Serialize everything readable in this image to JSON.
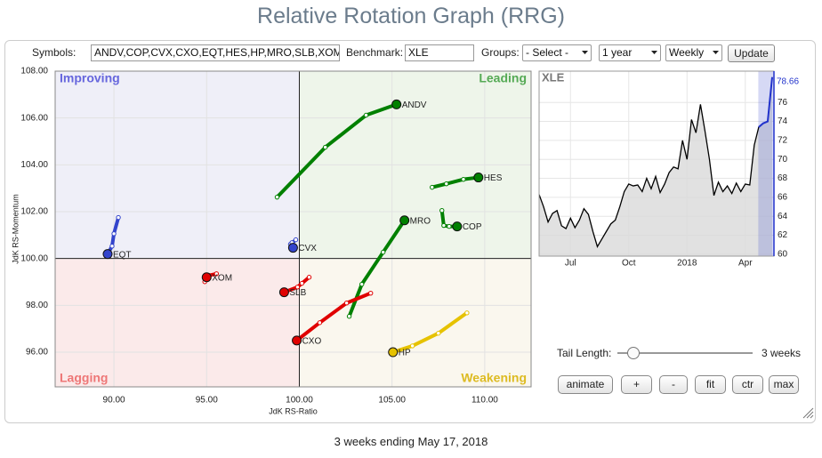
{
  "header": {
    "title": "Relative Rotation Graph (RRG)"
  },
  "controls": {
    "symbols_label": "Symbols:",
    "symbols": "ANDV,COP,CVX,CXO,EQT,HES,HP,MRO,SLB,XOM",
    "benchmark_label": "Benchmark:",
    "benchmark": "XLE",
    "groups_label": "Groups:",
    "groups": "- Select -",
    "period": "1 year",
    "frequency": "Weekly",
    "update": "Update",
    "tail_label": "Tail Length:",
    "tail_value": "3 weeks",
    "buttons": [
      "animate",
      "+",
      "-",
      "fit",
      "ctr",
      "max"
    ]
  },
  "chart_data": [
    {
      "type": "rrg",
      "xlabel": "JdK RS-Ratio",
      "ylabel": "JdK RS-Momentum",
      "quadrants": [
        "Improving",
        "Leading",
        "Lagging",
        "Weakening"
      ],
      "center": {
        "x": 100,
        "y": 100
      },
      "xlim": [
        86.83,
        112.5
      ],
      "ylim": [
        94.52,
        108
      ],
      "xticks": [
        {
          "value": 90,
          "label": "90.00"
        },
        {
          "value": 95,
          "label": "95.00"
        },
        {
          "value": 100,
          "label": "100.00"
        },
        {
          "value": 105,
          "label": "105.00"
        },
        {
          "value": 110,
          "label": "110.00"
        }
      ],
      "yticks": [
        {
          "value": 96,
          "label": "96.00"
        },
        {
          "value": 98,
          "label": "98.00"
        },
        {
          "value": 100,
          "label": "100.00"
        },
        {
          "value": 102,
          "label": "102.00"
        },
        {
          "value": 104,
          "label": "104.00"
        },
        {
          "value": 106,
          "label": "106.00"
        },
        {
          "value": 108,
          "label": "108.00"
        }
      ],
      "grid": true,
      "series": [
        {
          "name": "ANDV",
          "color": "#008000",
          "x": [
            98.8,
            101.4,
            103.6,
            105.24
          ],
          "y": [
            102.62,
            104.75,
            106.12,
            106.58
          ]
        },
        {
          "name": "HES",
          "color": "#008000",
          "x": [
            107.16,
            107.93,
            108.85,
            109.66
          ],
          "y": [
            103.04,
            103.19,
            103.38,
            103.46
          ]
        },
        {
          "name": "COP",
          "color": "#008000",
          "x": [
            107.69,
            107.79,
            108.08,
            108.51
          ],
          "y": [
            102.05,
            101.41,
            101.37,
            101.37
          ]
        },
        {
          "name": "MRO",
          "color": "#008000",
          "x": [
            102.69,
            103.37,
            104.52,
            105.67
          ],
          "y": [
            97.53,
            98.9,
            100.27,
            101.63
          ]
        },
        {
          "name": "CVX",
          "color": "#3344cc",
          "x": [
            99.81,
            99.52,
            99.6,
            99.66
          ],
          "y": [
            100.8,
            100.61,
            100.68,
            100.46
          ]
        },
        {
          "name": "EQT",
          "color": "#3344cc",
          "x": [
            90.24,
            90.0,
            89.9,
            89.66
          ],
          "y": [
            101.75,
            101.06,
            100.53,
            100.19
          ]
        },
        {
          "name": "XOM",
          "color": "#e00000",
          "x": [
            95.53,
            95.14,
            94.9,
            95.0
          ],
          "y": [
            99.35,
            99.28,
            99.01,
            99.2
          ]
        },
        {
          "name": "SLB",
          "color": "#e00000",
          "x": [
            100.53,
            100.14,
            99.9,
            99.18
          ],
          "y": [
            99.2,
            98.94,
            98.78,
            98.56
          ]
        },
        {
          "name": "CXO",
          "color": "#e00000",
          "x": [
            103.85,
            102.55,
            101.1,
            99.86
          ],
          "y": [
            98.52,
            98.1,
            97.26,
            96.5
          ]
        },
        {
          "name": "HP",
          "color": "#e6c200",
          "x": [
            109.04,
            107.5,
            106.1,
            105.05
          ],
          "y": [
            97.68,
            96.81,
            96.27,
            96.0
          ]
        }
      ]
    },
    {
      "type": "line",
      "title": "XLE",
      "color": "#000000",
      "highlight_color": "#2233cc",
      "ylim": [
        59.8,
        79.3
      ],
      "yticks": [
        60,
        62,
        64,
        66,
        68,
        70,
        72,
        74,
        76
      ],
      "grid": true,
      "categories": [
        null,
        null,
        null,
        null,
        null,
        null,
        null,
        "Jul",
        null,
        null,
        null,
        null,
        null,
        null,
        null,
        null,
        null,
        null,
        null,
        null,
        "Oct",
        null,
        null,
        null,
        null,
        null,
        null,
        null,
        null,
        null,
        null,
        null,
        null,
        "2018",
        null,
        null,
        null,
        null,
        null,
        null,
        null,
        null,
        null,
        null,
        null,
        null,
        "Apr",
        null,
        null,
        null,
        null,
        null,
        null
      ],
      "values": [
        66.3,
        65.0,
        63.4,
        64.3,
        64.6,
        63.0,
        62.7,
        63.8,
        62.8,
        63.6,
        64.8,
        64.2,
        62.4,
        60.8,
        61.6,
        62.4,
        63.2,
        63.6,
        65.0,
        66.6,
        67.4,
        67.2,
        67.3,
        66.6,
        68.0,
        66.9,
        68.2,
        66.5,
        67.4,
        68.6,
        69.2,
        69.0,
        72.0,
        70.0,
        74.2,
        72.8,
        75.8,
        73.0,
        70.0,
        66.2,
        67.6,
        66.6,
        67.2,
        66.4,
        67.5,
        66.6,
        67.4,
        67.3,
        71.5,
        73.4,
        73.8,
        74.0,
        78.66
      ]
    }
  ],
  "footer": "3 weeks ending May 17, 2018"
}
